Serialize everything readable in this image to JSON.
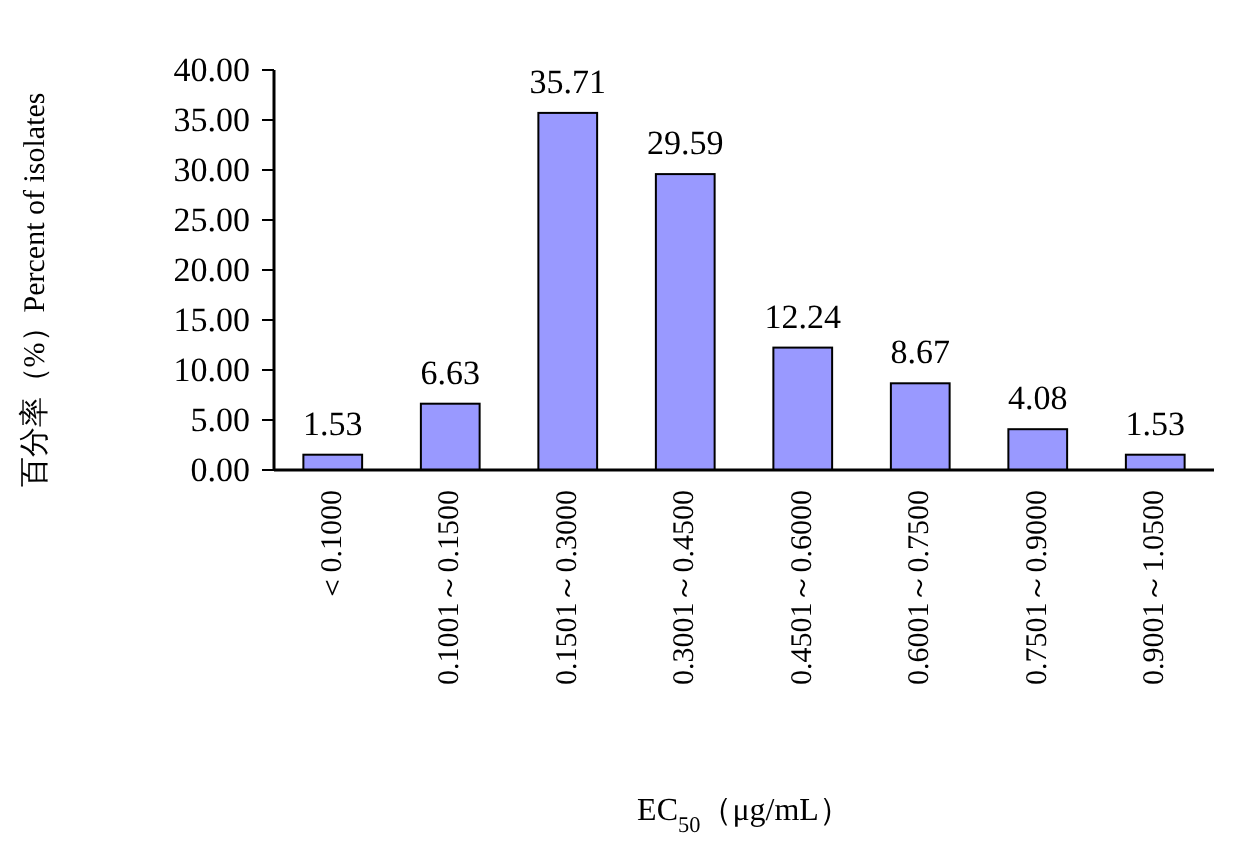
{
  "chart_data": {
    "type": "bar",
    "categories": [
      "＜0.1000",
      "0.1001～0.1500",
      "0.1501～0.3000",
      "0.3001～0.4500",
      "0.4501～0.6000",
      "0.6001～0.7500",
      "0.7501～0.9000",
      "0.9001～1.0500"
    ],
    "values": [
      1.53,
      6.63,
      35.71,
      29.59,
      12.24,
      8.67,
      4.08,
      1.53
    ],
    "color": "#9999ff",
    "xlabel": "EC$_{50}$（μg/mL）",
    "ylabel": "百分率（%）Percent of isolates",
    "ylim": [
      0,
      40
    ],
    "yticks": [
      {
        "value": 0,
        "label": "0.00"
      },
      {
        "value": 5,
        "label": "5.00"
      },
      {
        "value": 10,
        "label": "10.00"
      },
      {
        "value": 15,
        "label": "15.00"
      },
      {
        "value": 20,
        "label": "20.00"
      },
      {
        "value": 25,
        "label": "25.00"
      },
      {
        "value": 30,
        "label": "30.00"
      },
      {
        "value": 35,
        "label": "35.00"
      },
      {
        "value": 40,
        "label": "40.00"
      }
    ],
    "data_labels": true,
    "grid": false
  }
}
